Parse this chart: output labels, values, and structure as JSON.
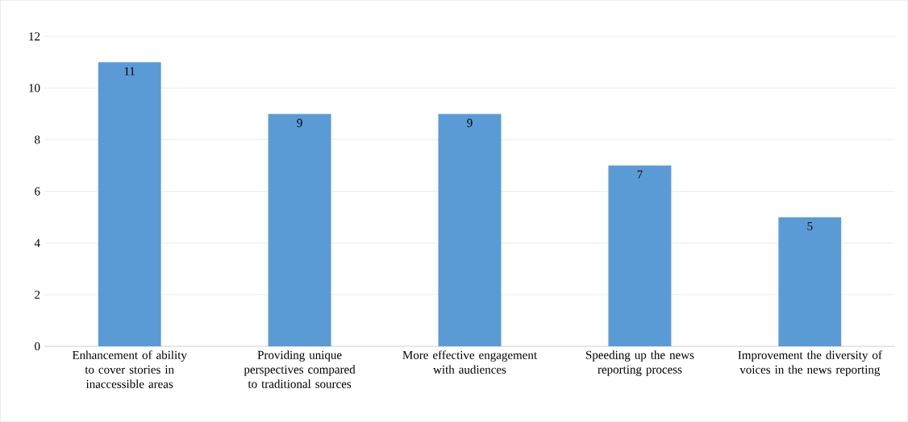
{
  "chart_data": {
    "type": "bar",
    "categories": [
      "Enhancement of ability to cover stories in inaccessible areas",
      "Providing unique perspectives compared to traditional sources",
      "More effective engagement with audiences",
      "Speeding up the news reporting process",
      "Improvement the diversity of voices in the news reporting"
    ],
    "values": [
      11,
      9,
      9,
      7,
      5
    ],
    "color": "#5b9bd5",
    "ylim": [
      0,
      12
    ],
    "yticks": [
      0,
      2,
      4,
      6,
      8,
      10,
      12
    ],
    "grid": "y",
    "data_labels": true
  }
}
